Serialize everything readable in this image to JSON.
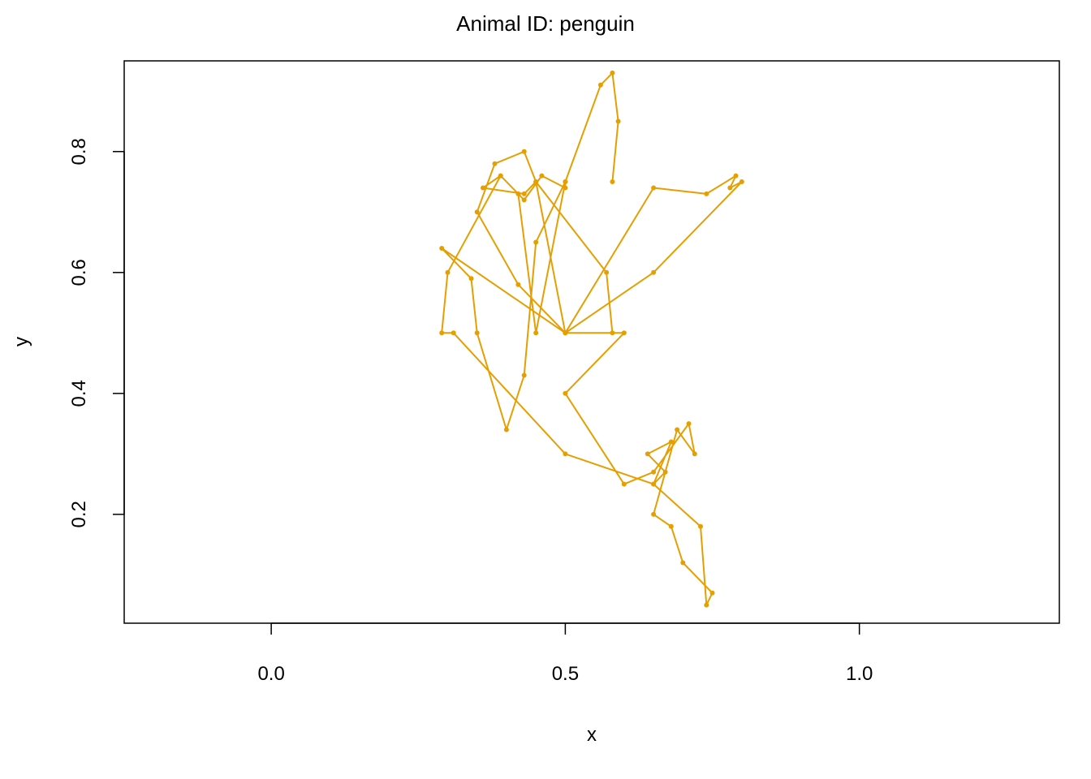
{
  "chart_data": {
    "type": "line",
    "title": "Animal ID: penguin",
    "xlabel": "x",
    "ylabel": "y",
    "xlim": [
      -0.25,
      1.34
    ],
    "ylim": [
      0.02,
      0.95
    ],
    "xticks": [
      0.0,
      0.5,
      1.0
    ],
    "xtick_labels": [
      "0.0",
      "0.5",
      "1.0"
    ],
    "yticks": [
      0.2,
      0.4,
      0.6,
      0.8
    ],
    "ytick_labels": [
      "0.2",
      "0.4",
      "0.6",
      "0.8"
    ],
    "grid": false,
    "legend": "none",
    "series": [
      {
        "color": "#E69F00",
        "marker": "dot",
        "x": [
          0.58,
          0.59,
          0.58,
          0.56,
          0.5,
          0.45,
          0.42,
          0.39,
          0.36,
          0.43,
          0.45,
          0.43,
          0.38,
          0.35,
          0.42,
          0.5,
          0.6,
          0.5,
          0.6,
          0.65,
          0.71,
          0.72,
          0.69,
          0.65,
          0.68,
          0.7,
          0.75,
          0.74,
          0.73,
          0.65,
          0.68,
          0.64,
          0.67,
          0.65,
          0.5,
          0.31,
          0.29,
          0.3,
          0.39,
          0.43,
          0.46,
          0.5,
          0.5,
          0.45,
          0.43,
          0.4,
          0.35,
          0.34,
          0.29,
          0.5,
          0.65,
          0.74,
          0.79,
          0.78,
          0.8,
          0.65,
          0.5,
          0.45,
          0.57,
          0.58
        ],
        "y": [
          0.75,
          0.85,
          0.93,
          0.91,
          0.75,
          0.5,
          0.73,
          0.76,
          0.74,
          0.73,
          0.75,
          0.8,
          0.78,
          0.7,
          0.58,
          0.5,
          0.5,
          0.4,
          0.25,
          0.27,
          0.35,
          0.3,
          0.34,
          0.2,
          0.18,
          0.12,
          0.07,
          0.05,
          0.18,
          0.25,
          0.32,
          0.3,
          0.27,
          0.25,
          0.3,
          0.5,
          0.5,
          0.6,
          0.76,
          0.72,
          0.76,
          0.74,
          0.75,
          0.65,
          0.43,
          0.34,
          0.5,
          0.59,
          0.64,
          0.5,
          0.74,
          0.73,
          0.76,
          0.74,
          0.75,
          0.6,
          0.5,
          0.75,
          0.6,
          0.5
        ]
      }
    ]
  }
}
